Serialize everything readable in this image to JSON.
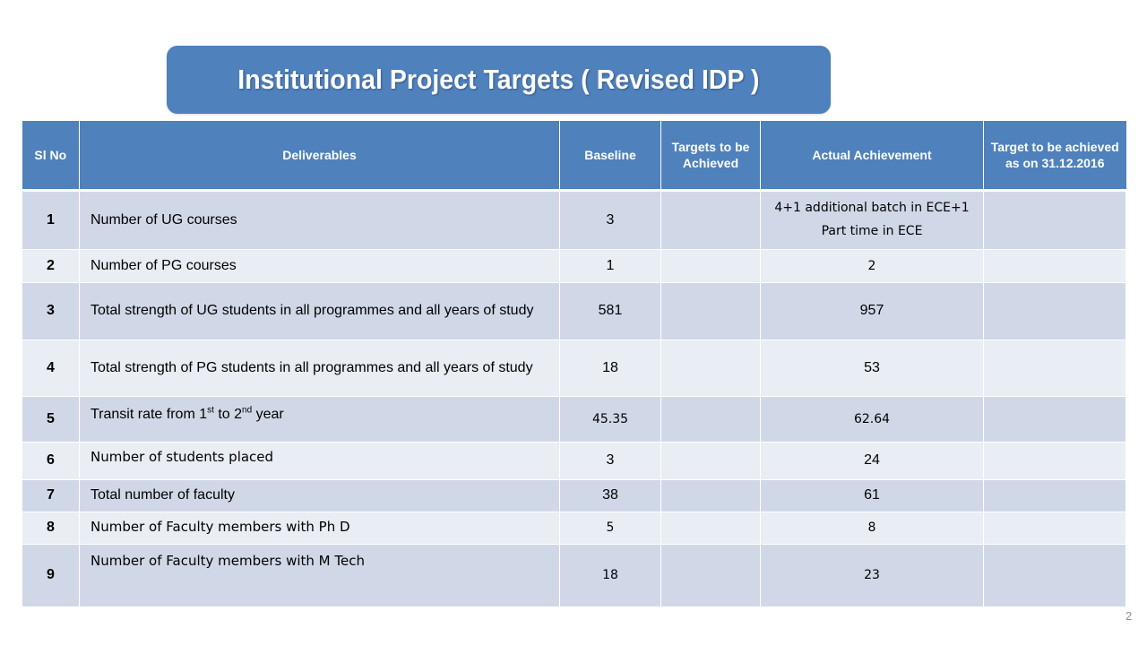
{
  "title": "Institutional Project Targets ( Revised IDP )",
  "headers": {
    "sl_no": "Sl No",
    "deliverables": "Deliverables",
    "baseline": "Baseline",
    "targets": "Targets to be Achieved",
    "actual": "Actual Achievement",
    "target_date": "Target to be achieved as on 31.12.2016"
  },
  "rows": [
    {
      "sl": "1",
      "deliverable": "Number of UG courses",
      "baseline": "3",
      "targets": "",
      "actual": "4+1 additional batch in ECE+1 Part time in ECE",
      "target_date": ""
    },
    {
      "sl": "2",
      "deliverable": "Number of PG courses",
      "baseline": "1",
      "targets": "",
      "actual": "2",
      "target_date": ""
    },
    {
      "sl": "3",
      "deliverable": "Total strength of UG students in all programmes and all years of study",
      "baseline": "581",
      "targets": "",
      "actual": "957",
      "target_date": ""
    },
    {
      "sl": "4",
      "deliverable": "Total strength of PG students in all programmes and all years of study",
      "baseline": "18",
      "targets": "",
      "actual": "53",
      "target_date": ""
    },
    {
      "sl": "5",
      "deliverable_prefix": "Transit rate from 1",
      "deliverable_sup1": "st",
      "deliverable_mid": " to 2",
      "deliverable_sup2": "nd",
      "deliverable_suffix": " year",
      "baseline": "45.35",
      "targets": "",
      "actual": "62.64",
      "target_date": ""
    },
    {
      "sl": "6",
      "deliverable": "Number of students placed",
      "baseline": "3",
      "targets": "",
      "actual": "24",
      "target_date": ""
    },
    {
      "sl": "7",
      "deliverable": "Total number of faculty",
      "baseline": "38",
      "targets": "",
      "actual": "61",
      "target_date": ""
    },
    {
      "sl": "8",
      "deliverable": "Number of Faculty members with Ph D",
      "baseline": "5",
      "targets": "",
      "actual": "8",
      "target_date": ""
    },
    {
      "sl": "9",
      "deliverable": "Number of Faculty members with M Tech",
      "baseline": "18",
      "targets": "",
      "actual": "23",
      "target_date": ""
    }
  ],
  "page_number": "2"
}
